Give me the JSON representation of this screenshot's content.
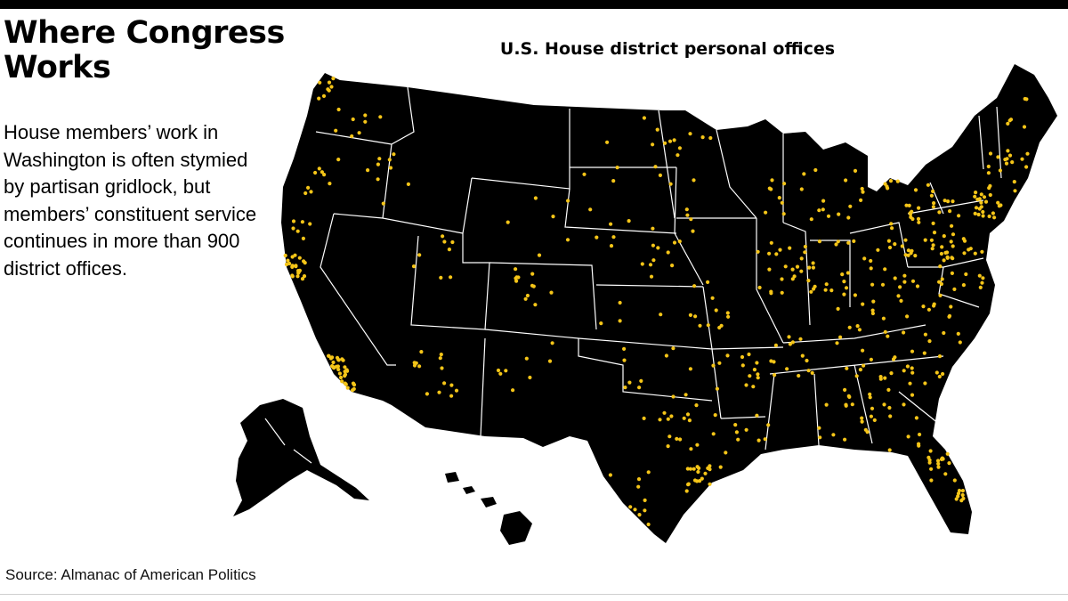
{
  "header": {
    "headline": "Where Congress Works",
    "dek": "House members’ work in Washington is often stymied by partisan gridlock, but members’ constituent service continues in more than 900 district offices."
  },
  "map": {
    "title": "U.S. House district personal offices",
    "land_color": "#000000",
    "border_color": "#ffffff",
    "dot_color": "#f5c518",
    "layers": [
      "contiguous-us",
      "alaska",
      "hawaii"
    ]
  },
  "footer": {
    "source": "Source: Almanac of American Politics"
  }
}
